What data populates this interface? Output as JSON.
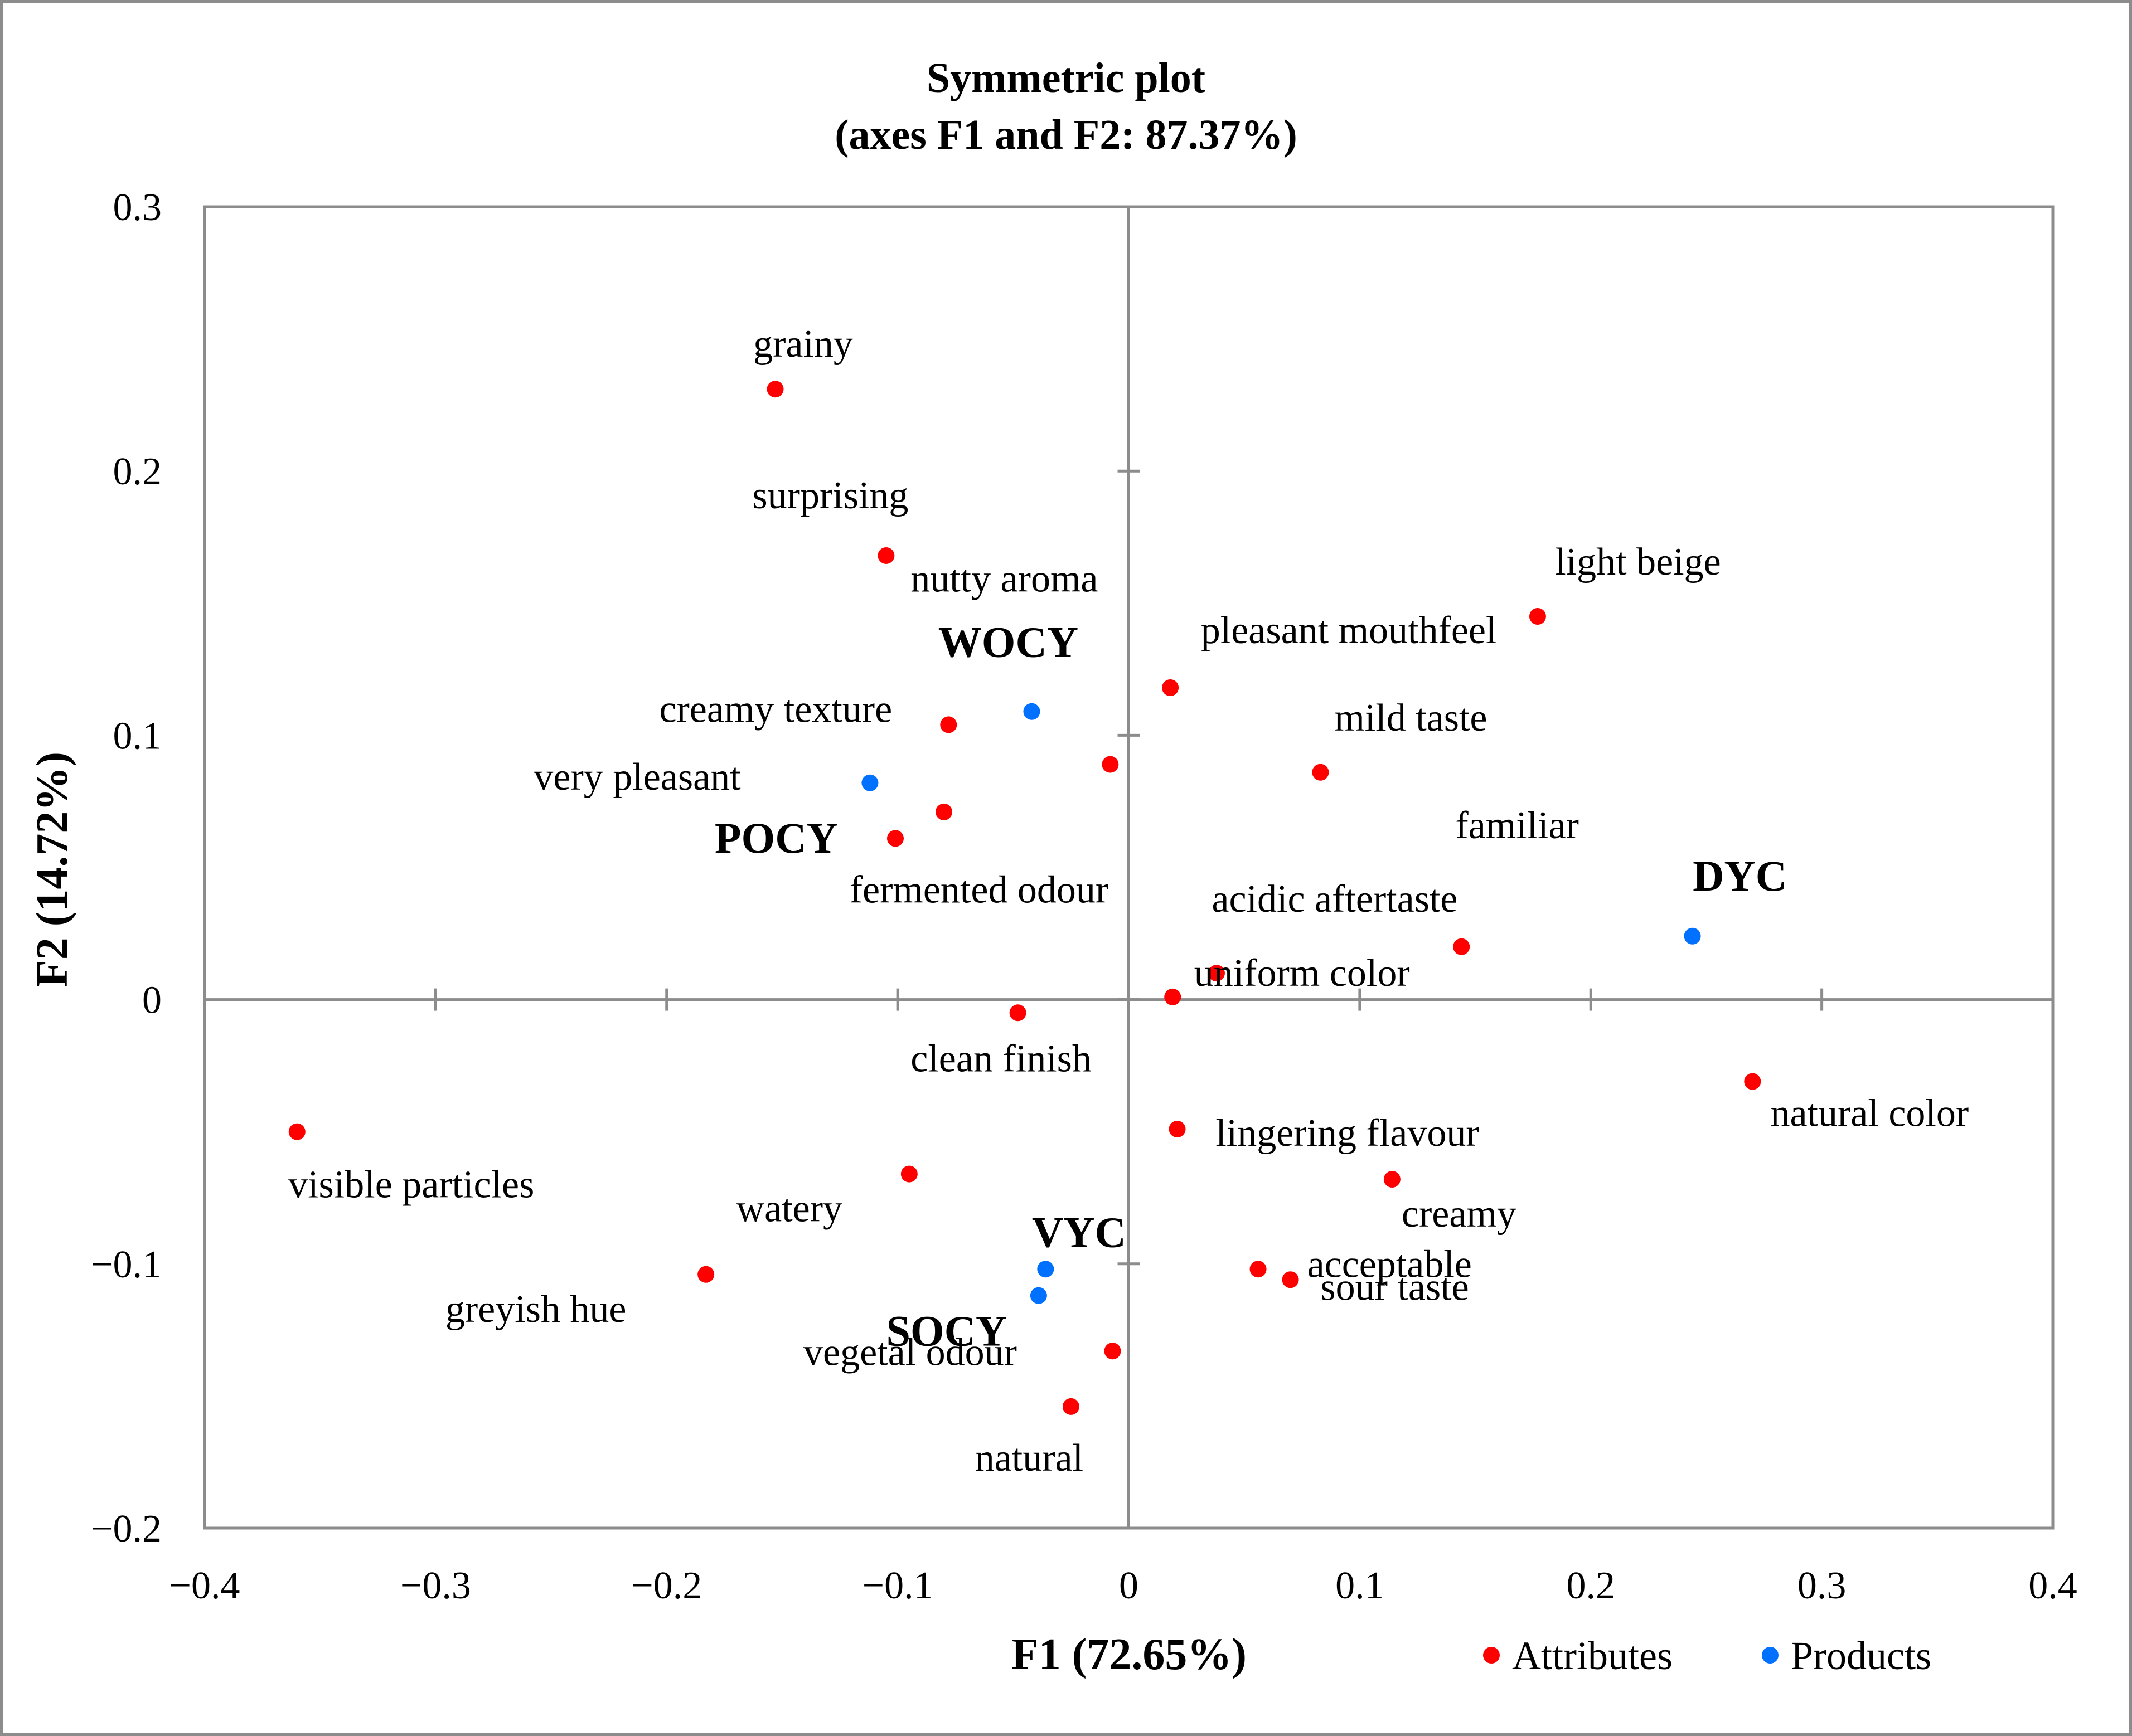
{
  "chart_data": {
    "type": "scatter",
    "title": "Symmetric plot",
    "subtitle": "(axes F1 and F2: 87.37%)",
    "xlabel": "F1 (72.65%)",
    "ylabel": "F2 (14.72%)",
    "xlim": [
      -0.4,
      0.4
    ],
    "ylim": [
      -0.2,
      0.3
    ],
    "x_ticks": [
      {
        "v": -0.4,
        "label": "−0.4"
      },
      {
        "v": -0.3,
        "label": "−0.3"
      },
      {
        "v": -0.2,
        "label": "−0.2"
      },
      {
        "v": -0.1,
        "label": "−0.1"
      },
      {
        "v": 0,
        "label": "0"
      },
      {
        "v": 0.1,
        "label": "0.1"
      },
      {
        "v": 0.2,
        "label": "0.2"
      },
      {
        "v": 0.3,
        "label": "0.3"
      },
      {
        "v": 0.4,
        "label": "0.4"
      }
    ],
    "y_ticks": [
      {
        "v": -0.2,
        "label": "−0.2"
      },
      {
        "v": -0.1,
        "label": "−0.1"
      },
      {
        "v": 0,
        "label": "0"
      },
      {
        "v": 0.1,
        "label": "0.1"
      },
      {
        "v": 0.2,
        "label": "0.2"
      },
      {
        "v": 0.3,
        "label": "0.3"
      }
    ],
    "legend": [
      {
        "name": "Attributes",
        "color": "#ff0000"
      },
      {
        "name": "Products",
        "color": "#0070ff"
      }
    ],
    "legend_position": "bottom-right",
    "series": [
      {
        "name": "Attributes",
        "color": "#ff0000",
        "points": [
          {
            "label": "grainy",
            "x": -0.153,
            "y": 0.231
          },
          {
            "label": "surprising",
            "x": -0.105,
            "y": 0.168
          },
          {
            "label": "nutty aroma",
            "x": -0.008,
            "y": 0.089
          },
          {
            "label": "light beige",
            "x": 0.177,
            "y": 0.145
          },
          {
            "label": "pleasant mouthfeel",
            "x": 0.018,
            "y": 0.118
          },
          {
            "label": "creamy texture",
            "x": -0.078,
            "y": 0.104
          },
          {
            "label": "mild taste",
            "x": 0.083,
            "y": 0.086
          },
          {
            "label": "very pleasant",
            "x": -0.08,
            "y": 0.071
          },
          {
            "label": "familiar",
            "x": 0.144,
            "y": 0.02
          },
          {
            "label": "fermented odour",
            "x": -0.101,
            "y": 0.061
          },
          {
            "label": "acidic aftertaste",
            "x": 0.038,
            "y": 0.01
          },
          {
            "label": "uniform color",
            "x": 0.019,
            "y": 0.001
          },
          {
            "label": "clean finish",
            "x": -0.048,
            "y": -0.005
          },
          {
            "label": "natural color",
            "x": 0.27,
            "y": -0.031
          },
          {
            "label": "lingering flavour",
            "x": 0.021,
            "y": -0.049
          },
          {
            "label": "visible particles",
            "x": -0.36,
            "y": -0.05
          },
          {
            "label": "watery",
            "x": -0.095,
            "y": -0.066
          },
          {
            "label": "creamy",
            "x": 0.114,
            "y": -0.068
          },
          {
            "label": "greyish hue",
            "x": -0.183,
            "y": -0.104
          },
          {
            "label": "sour taste",
            "x": 0.056,
            "y": -0.102
          },
          {
            "label": "acceptable",
            "x": 0.07,
            "y": -0.106
          },
          {
            "label": "vegetal odour",
            "x": -0.007,
            "y": -0.133
          },
          {
            "label": "natural",
            "x": -0.025,
            "y": -0.154
          }
        ]
      },
      {
        "name": "Products",
        "color": "#0070ff",
        "points": [
          {
            "label": "WOCY",
            "x": -0.042,
            "y": 0.109
          },
          {
            "label": "POCY",
            "x": -0.112,
            "y": 0.082
          },
          {
            "label": "DYC",
            "x": 0.244,
            "y": 0.024
          },
          {
            "label": "VYC",
            "x": -0.036,
            "y": -0.102
          },
          {
            "label": "SOCY",
            "x": -0.039,
            "y": -0.112
          }
        ]
      }
    ]
  }
}
